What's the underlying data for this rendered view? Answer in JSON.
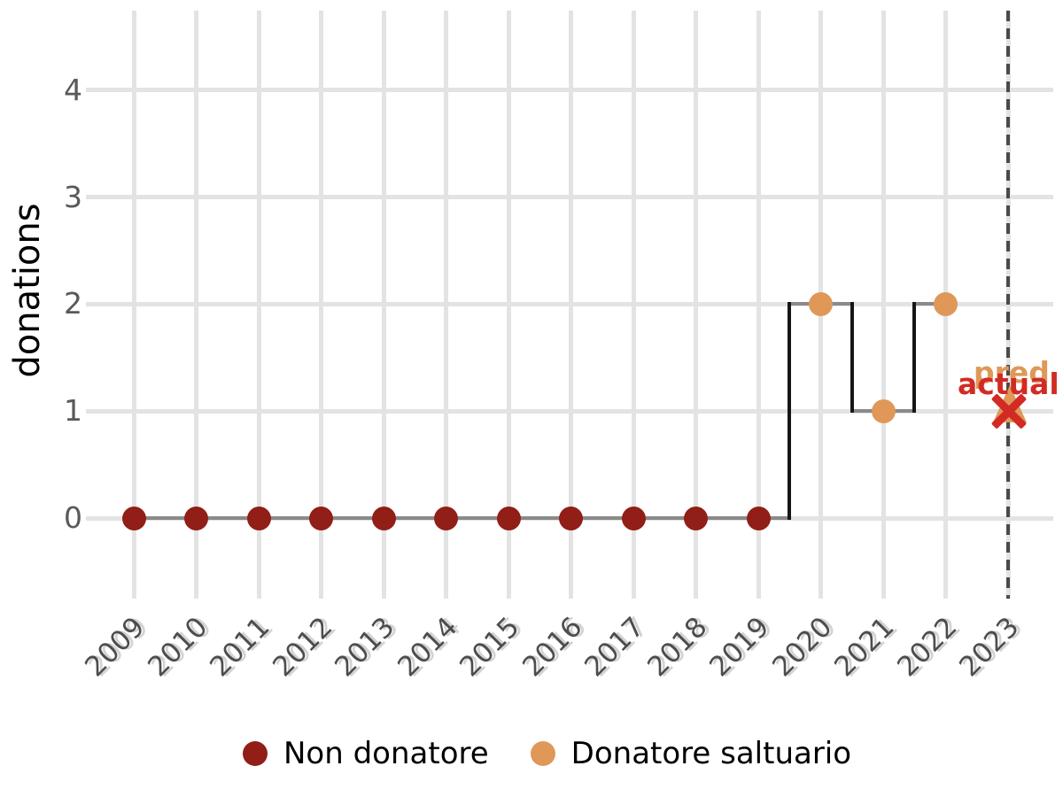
{
  "chart_data": {
    "type": "step",
    "title": "",
    "xlabel": "",
    "ylabel": "donations",
    "x_ticks": [
      "2009",
      "2010",
      "2011",
      "2012",
      "2013",
      "2014",
      "2015",
      "2016",
      "2017",
      "2018",
      "2019",
      "2020",
      "2021",
      "2022",
      "2023"
    ],
    "y_ticks": [
      0,
      1,
      2,
      3,
      4
    ],
    "ylim": [
      0,
      4
    ],
    "grid": true,
    "series": [
      {
        "name": "Non donatore",
        "color": "#911e17",
        "x": [
          2009,
          2010,
          2011,
          2012,
          2013,
          2014,
          2015,
          2016,
          2017,
          2018,
          2019
        ],
        "y": [
          0,
          0,
          0,
          0,
          0,
          0,
          0,
          0,
          0,
          0,
          0
        ]
      },
      {
        "name": "Donatore saltuario",
        "color": "#df9858",
        "x": [
          2020,
          2021,
          2022
        ],
        "y": [
          2,
          1,
          2
        ]
      }
    ],
    "step_line": {
      "horizontal_color": "#8a8a8a",
      "vertical_color": "#161616"
    },
    "prediction_boundary_x": 2023,
    "annotations": [
      {
        "label": "pred",
        "x": 2023,
        "y": 1,
        "marker": "triangle-up",
        "color": "#df9858"
      },
      {
        "label": "actual",
        "x": 2023,
        "y": 1,
        "marker": "x",
        "color": "#d22b24"
      }
    ],
    "legend": {
      "position": "bottom",
      "items": [
        {
          "label": "Non donatore",
          "color": "#911e17"
        },
        {
          "label": "Donatore saltuario",
          "color": "#df9858"
        }
      ]
    }
  }
}
